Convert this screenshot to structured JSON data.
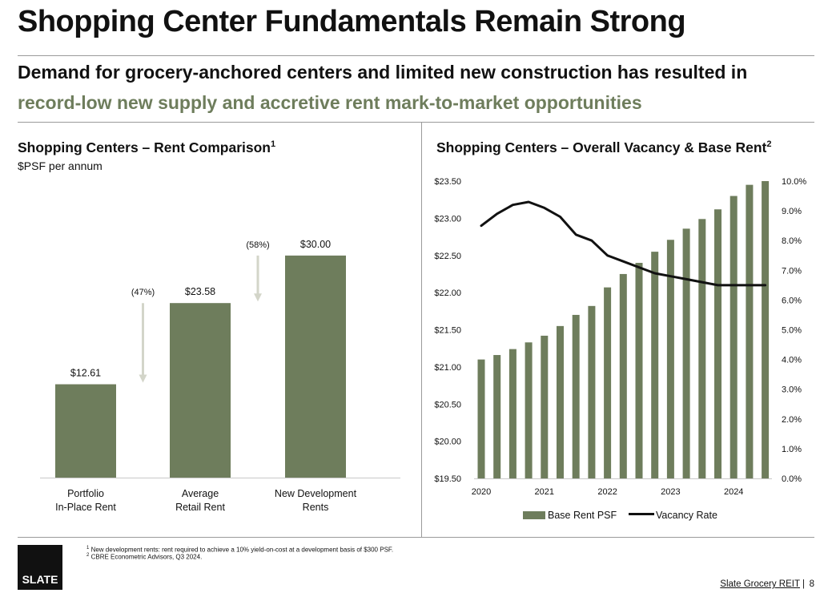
{
  "page": {
    "title": "Shopping Center Fundamentals Remain Strong",
    "subtitle_line1": "Demand for grocery-anchored centers and limited new construction has resulted in",
    "subtitle_line2": "record-low new supply and accretive rent mark-to-market opportunities"
  },
  "colors": {
    "bar": "#6e7d5c",
    "arrow": "#d3d5c9",
    "line": "#111111",
    "accent_text": "#6e7d5c"
  },
  "chart_data": [
    {
      "type": "bar",
      "title": "Shopping Centers – Rent Comparison",
      "title_footnote": "1",
      "unit_label": "$PSF per annum",
      "categories": [
        [
          "Portfolio",
          "In-Place Rent"
        ],
        [
          "Average",
          "Retail Rent"
        ],
        [
          "New Development",
          "Rents"
        ]
      ],
      "values": [
        12.61,
        23.58,
        30.0
      ],
      "value_labels": [
        "$12.61",
        "$23.58",
        "$30.00"
      ],
      "ylim": [
        0,
        38
      ],
      "annotations": [
        {
          "label": "(47%)",
          "between": [
            0,
            1
          ]
        },
        {
          "label": "(58%)",
          "between": [
            1,
            2
          ]
        }
      ]
    },
    {
      "type": "bar+line",
      "title": "Shopping Centers – Overall Vacancy & Base Rent",
      "title_footnote": "2",
      "x_tick_labels": [
        "2020",
        "2021",
        "2022",
        "2023",
        "2024"
      ],
      "y_left": {
        "ticks": [
          "$19.50",
          "$20.00",
          "$20.50",
          "$21.00",
          "$21.50",
          "$22.00",
          "$22.50",
          "$23.00",
          "$23.50"
        ],
        "range": [
          19.5,
          23.5
        ]
      },
      "y_right": {
        "ticks": [
          "0.0%",
          "1.0%",
          "2.0%",
          "3.0%",
          "4.0%",
          "5.0%",
          "6.0%",
          "7.0%",
          "8.0%",
          "9.0%",
          "10.0%"
        ],
        "range": [
          0,
          10
        ]
      },
      "series": [
        {
          "name": "Base Rent PSF",
          "kind": "bar",
          "values": [
            21.1,
            21.16,
            21.24,
            21.33,
            21.42,
            21.55,
            21.7,
            21.82,
            22.07,
            22.25,
            22.4,
            22.55,
            22.71,
            22.86,
            22.99,
            23.12,
            23.3,
            23.45,
            23.5
          ]
        },
        {
          "name": "Vacancy Rate",
          "kind": "line",
          "values": [
            8.5,
            8.9,
            9.2,
            9.3,
            9.1,
            8.8,
            8.2,
            8.0,
            7.5,
            7.3,
            7.1,
            6.9,
            6.8,
            6.7,
            6.6,
            6.5,
            6.5,
            6.5,
            6.5
          ]
        }
      ],
      "legend": [
        "Base Rent PSF",
        "Vacancy Rate"
      ]
    }
  ],
  "footnotes": [
    {
      "num": "1",
      "text": "New development rents: rent required to achieve a 10% yield-on-cost at a development basis of $300 PSF."
    },
    {
      "num": "2",
      "text": "CBRE Econometric Advisors, Q3 2024."
    }
  ],
  "footer": {
    "logo": "SLATE",
    "brand": "Slate Grocery REIT",
    "separator": "|",
    "page_number": "8"
  }
}
